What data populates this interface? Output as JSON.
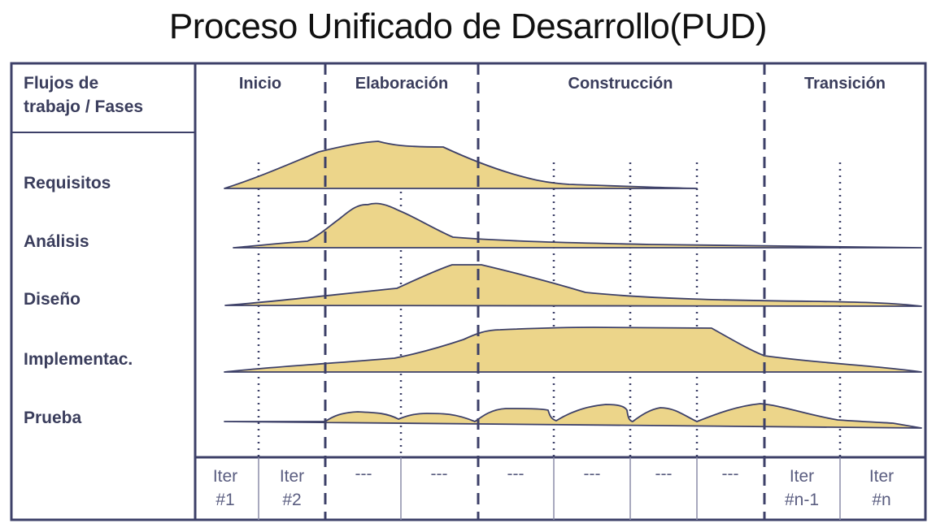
{
  "title": "Proceso Unificado de Desarrollo(PUD)",
  "header_label_line1": "Flujos de",
  "header_label_line2": "trabajo / Fases",
  "phases": [
    "Inicio",
    "Elaboración",
    "Construcción",
    "Transición"
  ],
  "workflows": [
    "Requisitos",
    "Análisis",
    "Diseño",
    "Implementac.",
    "Prueba"
  ],
  "iterations": [
    {
      "line1": "Iter",
      "line2": "#1"
    },
    {
      "line1": "Iter",
      "line2": "#2"
    },
    {
      "line1": "---",
      "line2": ""
    },
    {
      "line1": "---",
      "line2": ""
    },
    {
      "line1": "---",
      "line2": ""
    },
    {
      "line1": "---",
      "line2": ""
    },
    {
      "line1": "---",
      "line2": ""
    },
    {
      "line1": "---",
      "line2": ""
    },
    {
      "line1": "Iter",
      "line2": "#n-1"
    },
    {
      "line1": "Iter",
      "line2": "#n"
    }
  ],
  "colors": {
    "frame": "#3d4068",
    "fill": "#ecd58a",
    "text": "#3a3d5c"
  }
}
